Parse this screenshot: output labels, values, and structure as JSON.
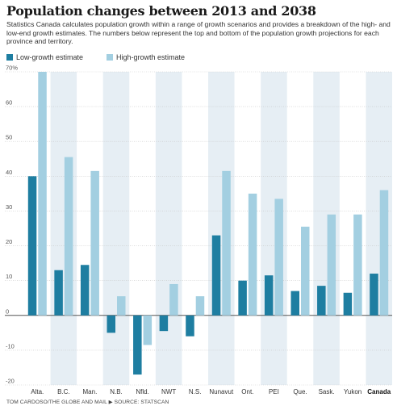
{
  "header": {
    "title": "Population changes between 2013 and 2038",
    "subtitle": "Statistics Canada calculates population growth within a range of growth scenarios and provides a breakdown of the high- and low-end growth estimates. The numbers below represent the top and bottom of the population growth projections for each province and territory."
  },
  "footer": {
    "source": "TOM CARDOSO/THE GLOBE AND MAIL ▶ SOURCE: STATSCAN"
  },
  "colors": {
    "low": "#1e7ea1",
    "high": "#a3cfe1",
    "band": "#e6eef4",
    "grid": "#c8c8c8",
    "axis_text": "#555555"
  },
  "chart_data": {
    "type": "bar",
    "categories": [
      "Alta.",
      "B.C.",
      "Man.",
      "N.B.",
      "Nfld.",
      "NWT",
      "N.S.",
      "Nunavut",
      "Ont.",
      "PEI",
      "Que.",
      "Sask.",
      "Yukon",
      "Canada"
    ],
    "series": [
      {
        "name": "Low-growth estimate",
        "values": [
          40,
          13,
          14.5,
          -5,
          -17,
          -4.5,
          -6,
          23,
          10,
          11.5,
          7,
          8.5,
          6.5,
          12
        ]
      },
      {
        "name": "High-growth estimate",
        "values": [
          70,
          45.5,
          41.5,
          5.5,
          -8.5,
          9,
          5.5,
          41.5,
          35,
          33.5,
          25.5,
          29,
          29,
          36
        ]
      }
    ],
    "ylim": [
      -20,
      70
    ],
    "yticks": [
      "70%",
      "60",
      "50",
      "40",
      "30",
      "20",
      "10",
      "0",
      "-10",
      "-20"
    ],
    "grid": true,
    "legend": "top-left",
    "bold_category": "Canada"
  }
}
